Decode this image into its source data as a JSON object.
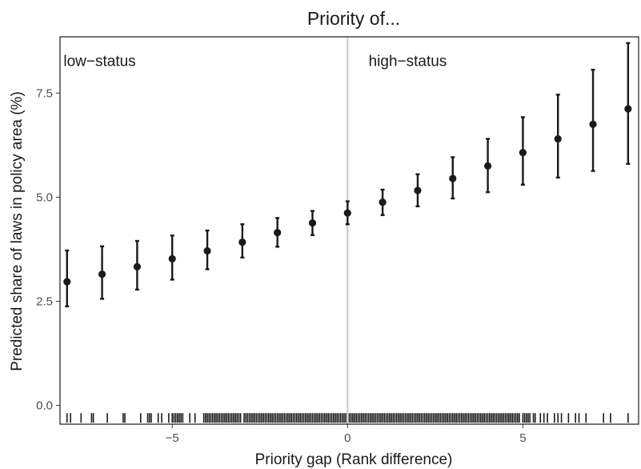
{
  "chart_data": {
    "type": "scatter",
    "title": "Priority of...",
    "xlabel": "Priority gap (Rank difference)",
    "ylabel": "Predicted share of laws in policy area (%)",
    "xlim": [
      -8.2,
      8.3
    ],
    "ylim": [
      -0.45,
      8.85
    ],
    "xticks": [
      -5,
      0,
      5
    ],
    "xtick_labels": [
      "−5",
      "0",
      "5"
    ],
    "yticks": [
      0,
      2.5,
      5,
      7.5
    ],
    "ytick_labels": [
      "0.0",
      "2.5",
      "5.0",
      "7.5"
    ],
    "grid": false,
    "reference_line": {
      "x": 0,
      "color": "#c8c8c8"
    },
    "annotations": [
      {
        "text": "low−status",
        "x": -8.1,
        "y": 8.15
      },
      {
        "text": "high−status",
        "x": 0.6,
        "y": 8.15
      }
    ],
    "series": [
      {
        "x": [
          -8,
          -7,
          -6,
          -5,
          -4,
          -3,
          -2,
          -1,
          0,
          1,
          2,
          3,
          4,
          5,
          6,
          7,
          8
        ],
        "y": [
          2.97,
          3.15,
          3.33,
          3.52,
          3.71,
          3.92,
          4.15,
          4.38,
          4.62,
          4.88,
          5.16,
          5.45,
          5.75,
          6.07,
          6.4,
          6.75,
          7.12
        ],
        "lower": [
          2.38,
          2.56,
          2.78,
          3.02,
          3.27,
          3.55,
          3.81,
          4.09,
          4.35,
          4.57,
          4.78,
          4.97,
          5.12,
          5.3,
          5.47,
          5.63,
          5.8
        ],
        "upper": [
          3.72,
          3.82,
          3.95,
          4.08,
          4.2,
          4.35,
          4.5,
          4.67,
          4.9,
          5.18,
          5.55,
          5.96,
          6.4,
          6.92,
          7.46,
          8.06,
          8.7
        ]
      }
    ],
    "rug": {
      "y": -0.3,
      "x": [
        -8,
        -7.9,
        -7.6,
        -7.3,
        -7.25,
        -6.85,
        -6.4,
        -6.35,
        -5.9,
        -5.7,
        -5.65,
        -5.6,
        -5.4,
        -5.3,
        -5.1,
        -5,
        -4.95,
        -4.9,
        -4.85,
        -4.8,
        -4.75,
        -4.7,
        -4.5,
        -4.35,
        -4.1,
        -4.05,
        -4,
        -3.95,
        -3.9,
        -3.85,
        -3.8,
        -3.75,
        -3.7,
        -3.65,
        -3.6,
        -3.55,
        -3.5,
        -3.45,
        -3.4,
        -3.35,
        -3.3,
        -3.25,
        -3.2,
        -3.15,
        -3.1,
        -3.05,
        -2.95,
        -2.9,
        -2.85,
        -2.8,
        -2.75,
        -2.7,
        -2.65,
        -2.6,
        -2.55,
        -2.5,
        -2.45,
        -2.4,
        -2.35,
        -2.3,
        -2.25,
        -2.2,
        -2.15,
        -2.1,
        -2.05,
        -2,
        -1.95,
        -1.9,
        -1.85,
        -1.8,
        -1.75,
        -1.7,
        -1.65,
        -1.6,
        -1.55,
        -1.5,
        -1.45,
        -1.4,
        -1.35,
        -1.3,
        -1.25,
        -1.2,
        -1.15,
        -1.1,
        -1.05,
        -1,
        -0.95,
        -0.9,
        -0.85,
        -0.8,
        -0.75,
        -0.7,
        -0.65,
        -0.6,
        -0.55,
        -0.5,
        -0.45,
        -0.4,
        -0.35,
        -0.3,
        -0.25,
        -0.2,
        -0.15,
        -0.1,
        -0.05,
        0.05,
        0.1,
        0.15,
        0.2,
        0.25,
        0.3,
        0.35,
        0.4,
        0.45,
        0.5,
        0.55,
        0.6,
        0.65,
        0.7,
        0.75,
        0.8,
        0.85,
        0.9,
        0.95,
        1,
        1.05,
        1.1,
        1.15,
        1.2,
        1.25,
        1.3,
        1.35,
        1.4,
        1.45,
        1.5,
        1.55,
        1.6,
        1.65,
        1.7,
        1.75,
        1.8,
        1.85,
        1.9,
        1.95,
        2,
        2.05,
        2.1,
        2.15,
        2.2,
        2.25,
        2.3,
        2.35,
        2.4,
        2.45,
        2.5,
        2.55,
        2.6,
        2.65,
        2.7,
        2.75,
        2.8,
        2.85,
        2.9,
        2.95,
        3,
        3.05,
        3.1,
        3.15,
        3.2,
        3.25,
        3.3,
        3.35,
        3.4,
        3.45,
        3.5,
        3.55,
        3.6,
        3.65,
        3.7,
        3.75,
        3.8,
        3.85,
        3.9,
        3.95,
        4,
        4.05,
        4.1,
        4.15,
        4.2,
        4.25,
        4.3,
        4.35,
        4.4,
        4.45,
        4.5,
        4.55,
        4.6,
        4.65,
        4.7,
        4.75,
        4.8,
        4.85,
        4.9,
        5,
        5.05,
        5.1,
        5.15,
        5.2,
        5.3,
        5.35,
        5.5,
        5.6,
        5.7,
        5.9,
        6,
        6.1,
        6.3,
        6.5,
        6.6,
        6.8,
        7.3,
        7.5,
        8
      ]
    }
  }
}
